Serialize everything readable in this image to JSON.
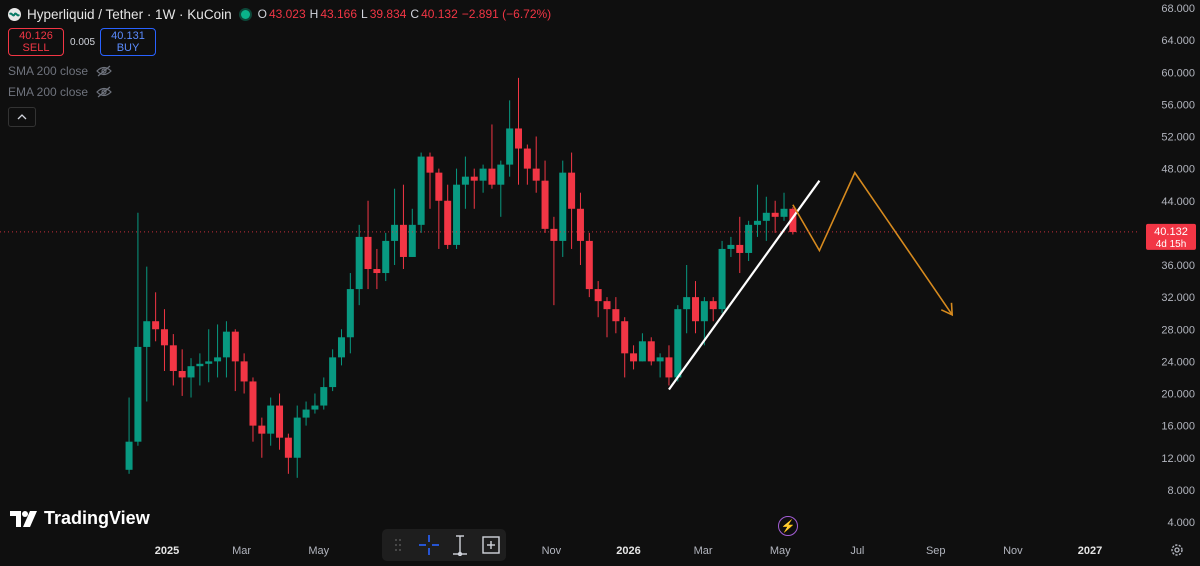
{
  "header": {
    "title": "Hyperliquid / Tether · 1W · KuCoin",
    "ohlc": [
      {
        "label": "O",
        "value": "43.023"
      },
      {
        "label": "H",
        "value": "43.166"
      },
      {
        "label": "L",
        "value": "39.834"
      },
      {
        "label": "C",
        "value": "40.132"
      },
      {
        "label": "",
        "value": "−2.891 (−6.72%)"
      }
    ]
  },
  "trade": {
    "sell_price": "40.126",
    "sell_label": "SELL",
    "spread": "0.005",
    "buy_price": "40.131",
    "buy_label": "BUY"
  },
  "indicators": [
    "SMA 200 close",
    "EMA 200 close"
  ],
  "watermark": "TradingView",
  "price_label": {
    "value": "40.132",
    "countdown": "4d 15h"
  },
  "colors": {
    "up": "#089981",
    "down": "#f23645",
    "background": "#0f0f0f",
    "projection": "#d68a1e",
    "trendline": "#ffffff"
  },
  "icons": [
    "hyperliquid-logo-icon",
    "live-status-icon",
    "eye-slash-icon",
    "chevron-up-icon",
    "drag-handle-icon",
    "crosshair-icon",
    "measure-icon",
    "zoom-icon",
    "lightning-icon",
    "gear-icon"
  ],
  "chart_data": {
    "type": "candlestick",
    "timeframe": "1W",
    "ylim": [
      4,
      68
    ],
    "y_ticks": [
      "68.000",
      "64.000",
      "60.000",
      "56.000",
      "52.000",
      "48.000",
      "44.000",
      "40.000",
      "36.000",
      "32.000",
      "28.000",
      "24.000",
      "20.000",
      "16.000",
      "12.000",
      "8.000",
      "4.000"
    ],
    "x_ticks": [
      {
        "label": "2025",
        "date": "2025-01-01",
        "bold": true
      },
      {
        "label": "Mar",
        "date": "2025-03-01",
        "bold": false
      },
      {
        "label": "May",
        "date": "2025-05-01",
        "bold": false
      },
      {
        "label": "Nov",
        "date": "2025-11-01",
        "bold": false
      },
      {
        "label": "2026",
        "date": "2026-01-01",
        "bold": true
      },
      {
        "label": "Mar",
        "date": "2026-03-01",
        "bold": false
      },
      {
        "label": "May",
        "date": "2026-05-01",
        "bold": false
      },
      {
        "label": "Jul",
        "date": "2026-07-01",
        "bold": false
      },
      {
        "label": "Sep",
        "date": "2026-09-01",
        "bold": false
      },
      {
        "label": "Nov",
        "date": "2026-11-01",
        "bold": false
      },
      {
        "label": "2027",
        "date": "2027-01-01",
        "bold": true
      }
    ],
    "last_price": 40.132,
    "candles": [
      {
        "date": "2024-12-02",
        "o": 10.5,
        "h": 19.5,
        "l": 10.0,
        "c": 14.0
      },
      {
        "date": "2024-12-09",
        "o": 14.0,
        "h": 42.5,
        "l": 13.5,
        "c": 25.8
      },
      {
        "date": "2024-12-16",
        "o": 25.8,
        "h": 35.8,
        "l": 19.0,
        "c": 29.0
      },
      {
        "date": "2024-12-23",
        "o": 29.0,
        "h": 32.6,
        "l": 26.5,
        "c": 28.0
      },
      {
        "date": "2024-12-30",
        "o": 28.0,
        "h": 30.5,
        "l": 22.8,
        "c": 26.0
      },
      {
        "date": "2025-01-06",
        "o": 26.0,
        "h": 27.4,
        "l": 21.0,
        "c": 22.8
      },
      {
        "date": "2025-01-13",
        "o": 22.8,
        "h": 25.5,
        "l": 19.7,
        "c": 22.0
      },
      {
        "date": "2025-01-20",
        "o": 22.0,
        "h": 24.4,
        "l": 19.5,
        "c": 23.4
      },
      {
        "date": "2025-01-27",
        "o": 23.4,
        "h": 25.0,
        "l": 21.0,
        "c": 23.7
      },
      {
        "date": "2025-02-03",
        "o": 23.7,
        "h": 28.0,
        "l": 21.4,
        "c": 24.0
      },
      {
        "date": "2025-02-10",
        "o": 24.0,
        "h": 28.6,
        "l": 22.0,
        "c": 24.5
      },
      {
        "date": "2025-02-17",
        "o": 24.5,
        "h": 29.0,
        "l": 22.0,
        "c": 27.7
      },
      {
        "date": "2025-02-24",
        "o": 27.7,
        "h": 28.0,
        "l": 20.3,
        "c": 24.0
      },
      {
        "date": "2025-03-03",
        "o": 24.0,
        "h": 25.0,
        "l": 20.0,
        "c": 21.5
      },
      {
        "date": "2025-03-10",
        "o": 21.5,
        "h": 22.0,
        "l": 14.0,
        "c": 16.0
      },
      {
        "date": "2025-03-17",
        "o": 16.0,
        "h": 17.0,
        "l": 12.0,
        "c": 15.0
      },
      {
        "date": "2025-03-24",
        "o": 15.0,
        "h": 19.5,
        "l": 13.5,
        "c": 18.5
      },
      {
        "date": "2025-03-31",
        "o": 18.5,
        "h": 20.0,
        "l": 13.0,
        "c": 14.5
      },
      {
        "date": "2025-04-07",
        "o": 14.5,
        "h": 15.0,
        "l": 10.0,
        "c": 12.0
      },
      {
        "date": "2025-04-14",
        "o": 12.0,
        "h": 18.5,
        "l": 9.5,
        "c": 17.0
      },
      {
        "date": "2025-04-21",
        "o": 17.0,
        "h": 19.0,
        "l": 16.0,
        "c": 18.0
      },
      {
        "date": "2025-04-28",
        "o": 18.0,
        "h": 20.0,
        "l": 17.5,
        "c": 18.5
      },
      {
        "date": "2025-05-05",
        "o": 18.5,
        "h": 22.0,
        "l": 18.0,
        "c": 20.8
      },
      {
        "date": "2025-05-12",
        "o": 20.8,
        "h": 25.5,
        "l": 20.3,
        "c": 24.5
      },
      {
        "date": "2025-05-19",
        "o": 24.5,
        "h": 28.0,
        "l": 23.5,
        "c": 27.0
      },
      {
        "date": "2025-05-26",
        "o": 27.0,
        "h": 35.0,
        "l": 25.0,
        "c": 33.0
      },
      {
        "date": "2025-06-02",
        "o": 33.0,
        "h": 41.0,
        "l": 31.0,
        "c": 39.5
      },
      {
        "date": "2025-06-09",
        "o": 39.5,
        "h": 44.0,
        "l": 33.0,
        "c": 35.5
      },
      {
        "date": "2025-06-16",
        "o": 35.5,
        "h": 38.0,
        "l": 33.0,
        "c": 35.0
      },
      {
        "date": "2025-06-23",
        "o": 35.0,
        "h": 40.0,
        "l": 34.0,
        "c": 39.0
      },
      {
        "date": "2025-06-30",
        "o": 39.0,
        "h": 45.5,
        "l": 36.0,
        "c": 41.0
      },
      {
        "date": "2025-07-07",
        "o": 41.0,
        "h": 46.0,
        "l": 35.5,
        "c": 37.0
      },
      {
        "date": "2025-07-14",
        "o": 37.0,
        "h": 43.0,
        "l": 37.0,
        "c": 41.0
      },
      {
        "date": "2025-07-21",
        "o": 41.0,
        "h": 50.0,
        "l": 40.0,
        "c": 49.5
      },
      {
        "date": "2025-07-28",
        "o": 49.5,
        "h": 50.0,
        "l": 43.0,
        "c": 47.5
      },
      {
        "date": "2025-08-04",
        "o": 47.5,
        "h": 48.0,
        "l": 38.0,
        "c": 44.0
      },
      {
        "date": "2025-08-11",
        "o": 44.0,
        "h": 46.0,
        "l": 38.0,
        "c": 38.5
      },
      {
        "date": "2025-08-18",
        "o": 38.5,
        "h": 48.0,
        "l": 38.0,
        "c": 46.0
      },
      {
        "date": "2025-08-25",
        "o": 46.0,
        "h": 49.5,
        "l": 43.0,
        "c": 47.0
      },
      {
        "date": "2025-09-01",
        "o": 47.0,
        "h": 48.0,
        "l": 43.0,
        "c": 46.5
      },
      {
        "date": "2025-09-08",
        "o": 46.5,
        "h": 48.5,
        "l": 45.0,
        "c": 48.0
      },
      {
        "date": "2025-09-15",
        "o": 48.0,
        "h": 53.5,
        "l": 45.5,
        "c": 46.0
      },
      {
        "date": "2025-09-22",
        "o": 46.0,
        "h": 49.0,
        "l": 42.0,
        "c": 48.5
      },
      {
        "date": "2025-09-29",
        "o": 48.5,
        "h": 56.5,
        "l": 47.0,
        "c": 53.0
      },
      {
        "date": "2025-10-06",
        "o": 53.0,
        "h": 59.3,
        "l": 46.0,
        "c": 50.5
      },
      {
        "date": "2025-10-13",
        "o": 50.5,
        "h": 51.0,
        "l": 46.0,
        "c": 48.0
      },
      {
        "date": "2025-10-20",
        "o": 48.0,
        "h": 52.0,
        "l": 45.0,
        "c": 46.5
      },
      {
        "date": "2025-10-27",
        "o": 46.5,
        "h": 49.0,
        "l": 40.0,
        "c": 40.5
      },
      {
        "date": "2025-11-03",
        "o": 40.5,
        "h": 42.0,
        "l": 31.0,
        "c": 39.0
      },
      {
        "date": "2025-11-10",
        "o": 39.0,
        "h": 49.0,
        "l": 37.0,
        "c": 47.5
      },
      {
        "date": "2025-11-17",
        "o": 47.5,
        "h": 50.0,
        "l": 38.0,
        "c": 43.0
      },
      {
        "date": "2025-11-24",
        "o": 43.0,
        "h": 45.0,
        "l": 36.0,
        "c": 39.0
      },
      {
        "date": "2025-12-01",
        "o": 39.0,
        "h": 40.0,
        "l": 32.0,
        "c": 33.0
      },
      {
        "date": "2025-12-08",
        "o": 33.0,
        "h": 34.0,
        "l": 29.5,
        "c": 31.5
      },
      {
        "date": "2025-12-15",
        "o": 31.5,
        "h": 32.0,
        "l": 27.0,
        "c": 30.5
      },
      {
        "date": "2025-12-22",
        "o": 30.5,
        "h": 32.0,
        "l": 27.5,
        "c": 29.0
      },
      {
        "date": "2025-12-29",
        "o": 29.0,
        "h": 29.5,
        "l": 22.0,
        "c": 25.0
      },
      {
        "date": "2026-01-05",
        "o": 25.0,
        "h": 26.0,
        "l": 23.0,
        "c": 24.0
      },
      {
        "date": "2026-01-12",
        "o": 24.0,
        "h": 27.5,
        "l": 24.0,
        "c": 26.5
      },
      {
        "date": "2026-01-19",
        "o": 26.5,
        "h": 27.0,
        "l": 23.5,
        "c": 24.0
      },
      {
        "date": "2026-01-26",
        "o": 24.0,
        "h": 25.0,
        "l": 22.0,
        "c": 24.5
      },
      {
        "date": "2026-02-02",
        "o": 24.5,
        "h": 26.0,
        "l": 21.0,
        "c": 22.0
      },
      {
        "date": "2026-02-09",
        "o": 22.0,
        "h": 31.0,
        "l": 21.5,
        "c": 30.5
      },
      {
        "date": "2026-02-16",
        "o": 30.5,
        "h": 36.0,
        "l": 27.5,
        "c": 32.0
      },
      {
        "date": "2026-02-23",
        "o": 32.0,
        "h": 34.0,
        "l": 27.5,
        "c": 29.0
      },
      {
        "date": "2026-03-02",
        "o": 29.0,
        "h": 32.0,
        "l": 26.0,
        "c": 31.5
      },
      {
        "date": "2026-03-09",
        "o": 31.5,
        "h": 32.0,
        "l": 29.0,
        "c": 30.5
      },
      {
        "date": "2026-03-16",
        "o": 30.5,
        "h": 39.0,
        "l": 30.0,
        "c": 38.0
      },
      {
        "date": "2026-03-23",
        "o": 38.0,
        "h": 39.5,
        "l": 37.0,
        "c": 38.5
      },
      {
        "date": "2026-03-30",
        "o": 38.5,
        "h": 42.0,
        "l": 35.0,
        "c": 37.5
      },
      {
        "date": "2026-04-06",
        "o": 37.5,
        "h": 41.5,
        "l": 36.5,
        "c": 41.0
      },
      {
        "date": "2026-04-13",
        "o": 41.0,
        "h": 46.0,
        "l": 39.5,
        "c": 41.5
      },
      {
        "date": "2026-04-20",
        "o": 41.5,
        "h": 44.5,
        "l": 39.0,
        "c": 42.5
      },
      {
        "date": "2026-04-27",
        "o": 42.5,
        "h": 44.0,
        "l": 40.0,
        "c": 42.0
      },
      {
        "date": "2026-05-04",
        "o": 42.0,
        "h": 45.0,
        "l": 41.5,
        "c": 43.0
      },
      {
        "date": "2026-05-11",
        "o": 43.0,
        "h": 43.2,
        "l": 39.8,
        "c": 40.1
      }
    ],
    "trendline": {
      "from": {
        "date": "2026-02-02",
        "price": 20.5
      },
      "to": {
        "date": "2026-06-01",
        "price": 46.5
      }
    },
    "projection": [
      {
        "date": "2026-05-11",
        "price": 43.5
      },
      {
        "date": "2026-06-01",
        "price": 37.8
      },
      {
        "date": "2026-06-29",
        "price": 47.5
      },
      {
        "date": "2026-09-14",
        "price": 29.8
      }
    ]
  }
}
